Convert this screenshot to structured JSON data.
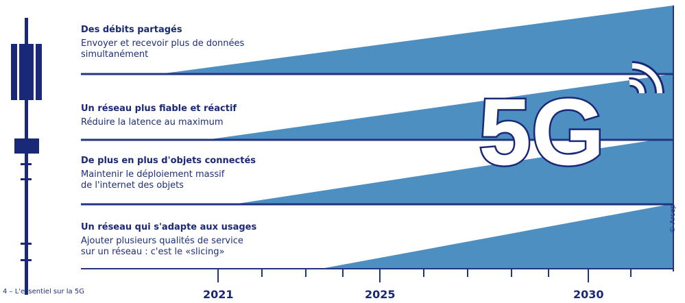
{
  "rows": [
    {
      "title": "Des débits partagés",
      "desc": [
        "Envoyer et recevoir plus de données",
        "simultanément"
      ]
    },
    {
      "title": "Un réseau plus fiable et réactif",
      "desc": [
        "Réduire la latence au maximum"
      ]
    },
    {
      "title": "De plus en plus d'objets connectés",
      "desc": [
        "Maintenir le déploiement massif",
        "de l'internet des objets"
      ]
    },
    {
      "title": "Un réseau qui s'adapte aux usages",
      "desc": [
        "Ajouter plusieurs qualités de service",
        "sur un réseau : c'est le «slicing»"
      ]
    }
  ],
  "timeline": {
    "years": [
      "2021",
      "2025",
      "2030"
    ]
  },
  "badge": {
    "text": "5G"
  },
  "caption": "4 – L'essentiel sur la 5G",
  "credit": "© Arcep",
  "colors": {
    "wedge": "#4e8fc2",
    "navy": "#1a2878",
    "line": "#22347f"
  }
}
